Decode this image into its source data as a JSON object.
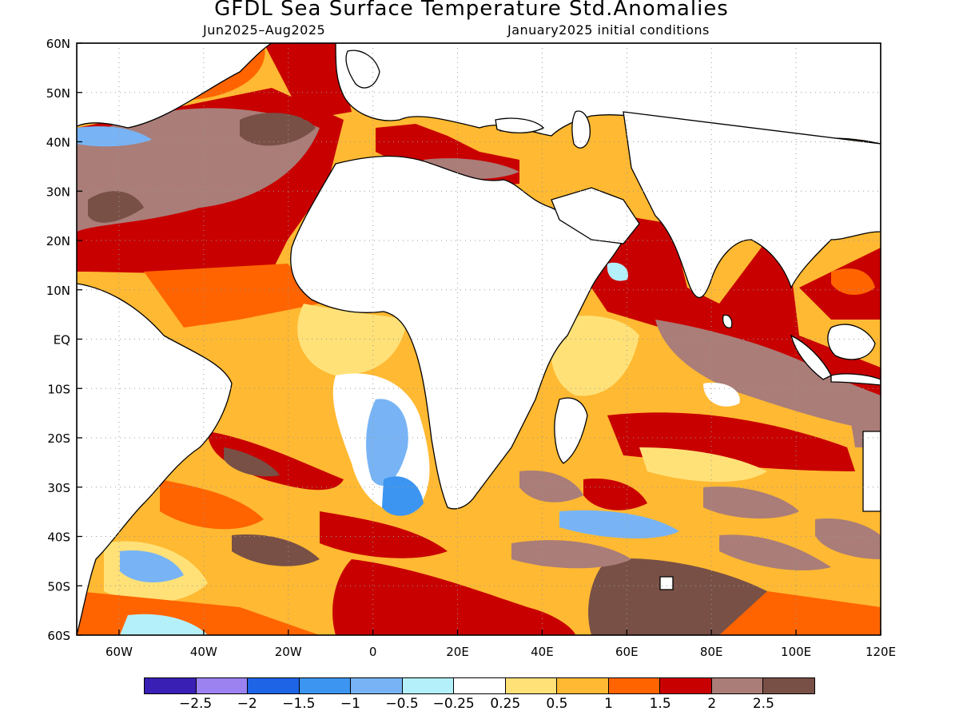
{
  "title": "GFDL Sea Surface Temperature Std.Anomalies",
  "subtitle_left": "Jun2025–Aug2025",
  "subtitle_right": "January2025 initial conditions",
  "map": {
    "lon_range": [
      -70,
      120
    ],
    "lat_range": [
      -60,
      60
    ],
    "lat_ticks": [
      {
        "value": 60,
        "label": "60N"
      },
      {
        "value": 50,
        "label": "50N"
      },
      {
        "value": 40,
        "label": "40N"
      },
      {
        "value": 30,
        "label": "30N"
      },
      {
        "value": 20,
        "label": "20N"
      },
      {
        "value": 10,
        "label": "10N"
      },
      {
        "value": 0,
        "label": "EQ"
      },
      {
        "value": -10,
        "label": "10S"
      },
      {
        "value": -20,
        "label": "20S"
      },
      {
        "value": -30,
        "label": "30S"
      },
      {
        "value": -40,
        "label": "40S"
      },
      {
        "value": -50,
        "label": "50S"
      },
      {
        "value": -60,
        "label": "60S"
      }
    ],
    "lon_ticks": [
      {
        "value": -60,
        "label": "60W"
      },
      {
        "value": -40,
        "label": "40W"
      },
      {
        "value": -20,
        "label": "20W"
      },
      {
        "value": 0,
        "label": "0"
      },
      {
        "value": 20,
        "label": "20E"
      },
      {
        "value": 40,
        "label": "40E"
      },
      {
        "value": 60,
        "label": "60E"
      },
      {
        "value": 80,
        "label": "80E"
      },
      {
        "value": 100,
        "label": "100E"
      },
      {
        "value": 120,
        "label": "120E"
      }
    ],
    "grid": true,
    "land_color": "#ffffff",
    "ocean_base_color": "#ffb932"
  },
  "colorbar": {
    "colors": [
      "#3a1fb5",
      "#9b82f0",
      "#1e64e6",
      "#3c95f0",
      "#78b4f5",
      "#b4f0fa",
      "#ffffff",
      "#ffe178",
      "#ffb932",
      "#ff6400",
      "#c80000",
      "#aa7d78",
      "#785046"
    ],
    "labels": [
      "−2.5",
      "−2",
      "−1.5",
      "−1",
      "−0.5",
      "−0.25",
      "0.25",
      "0.5",
      "1",
      "1.5",
      "2",
      "2.5"
    ]
  }
}
